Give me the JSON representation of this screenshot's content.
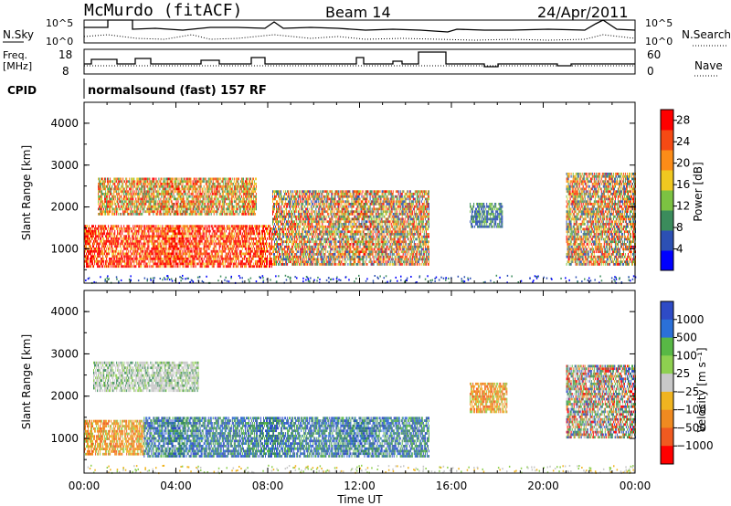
{
  "header": {
    "station": "McMurdo (fitACF)",
    "beam": "Beam 14",
    "date": "24/Apr/2011"
  },
  "noise_panel": {
    "left_label": "N.Sky",
    "right_label": "N.Search",
    "left_ticks": [
      "10^5",
      "10^0"
    ],
    "right_ticks": [
      "10^5",
      "10^0"
    ]
  },
  "freq_panel": {
    "left_label_1": "Freq.",
    "left_label_2": "[MHz]",
    "right_label": "Nave",
    "left_ticks": [
      "18",
      "8"
    ],
    "right_ticks": [
      "60",
      "0"
    ]
  },
  "cpid_panel": {
    "label": "CPID",
    "value": "normalsound (fast) 157 RF"
  },
  "chart_data": [
    {
      "type": "heatmap",
      "title": "",
      "xlabel": "",
      "ylabel": "Slant Range [km]",
      "xlim": [
        0,
        24
      ],
      "ylim": [
        180,
        4500
      ],
      "yticks": [
        "1000",
        "2000",
        "3000",
        "4000"
      ],
      "colorbar": {
        "label": "Power [dB]",
        "ticks": [
          "4",
          "8",
          "12",
          "16",
          "20",
          "24",
          "28"
        ],
        "range": [
          0,
          30
        ],
        "colors": [
          "#0000ff",
          "#2c50b4",
          "#3b8c5c",
          "#7cc242",
          "#f0c820",
          "#fc8c18",
          "#f54a14",
          "#ff0000"
        ]
      },
      "echo_regions": [
        {
          "t0": 0.0,
          "t1": 8.2,
          "r0": 550,
          "r1": 1550,
          "level": "high"
        },
        {
          "t0": 0.6,
          "t1": 7.5,
          "r0": 1800,
          "r1": 2700,
          "level": "mid"
        },
        {
          "t0": 8.2,
          "t1": 15.0,
          "r0": 600,
          "r1": 2400,
          "level": "mixed"
        },
        {
          "t0": 16.8,
          "t1": 18.2,
          "r0": 1500,
          "r1": 2100,
          "level": "low"
        },
        {
          "t0": 21.0,
          "t1": 24.0,
          "r0": 600,
          "r1": 2800,
          "level": "mixed"
        }
      ]
    },
    {
      "type": "heatmap",
      "title": "",
      "xlabel": "Time UT",
      "ylabel": "Slant Range [km]",
      "xlim": [
        0,
        24
      ],
      "ylim": [
        180,
        4500
      ],
      "xticks": [
        "00:00",
        "04:00",
        "08:00",
        "12:00",
        "16:00",
        "20:00",
        "00:00"
      ],
      "yticks": [
        "1000",
        "2000",
        "3000",
        "4000"
      ],
      "colorbar": {
        "label": "Velocity [m s⁻¹]",
        "ticks": [
          "1000",
          "500",
          "100",
          "25",
          "−25",
          "−100",
          "−500",
          "−1000"
        ],
        "colors": [
          "#2e4bc6",
          "#2b70d8",
          "#58b845",
          "#8ed050",
          "#c8c8c8",
          "#f0b420",
          "#f08a20",
          "#f05a20",
          "#ff0000"
        ]
      },
      "echo_regions": [
        {
          "t0": 0.0,
          "t1": 2.6,
          "r0": 600,
          "r1": 1400,
          "level": "negative"
        },
        {
          "t0": 2.6,
          "t1": 15.0,
          "r0": 550,
          "r1": 1500,
          "level": "positive"
        },
        {
          "t0": 0.4,
          "t1": 5.0,
          "r0": 2100,
          "r1": 2800,
          "level": "zero"
        },
        {
          "t0": 16.8,
          "t1": 18.4,
          "r0": 1600,
          "r1": 2300,
          "level": "negative"
        },
        {
          "t0": 21.0,
          "t1": 24.0,
          "r0": 1000,
          "r1": 2700,
          "level": "mixed"
        }
      ]
    }
  ]
}
